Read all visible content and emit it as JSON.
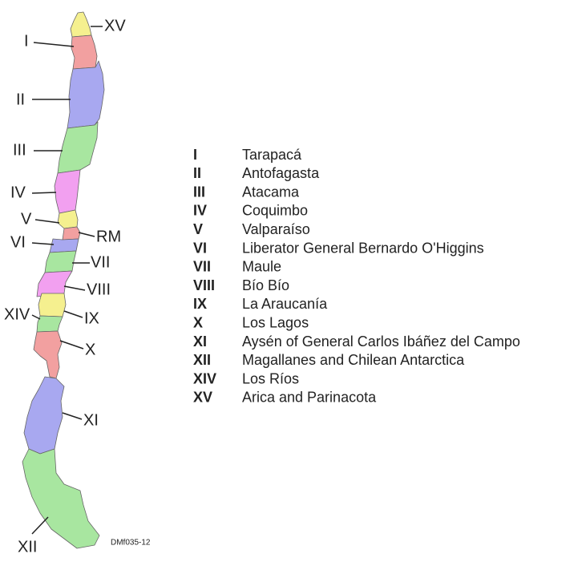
{
  "map": {
    "labels": [
      "XV",
      "I",
      "II",
      "III",
      "IV",
      "V",
      "RM",
      "VI",
      "VII",
      "VIII",
      "XIV",
      "IX",
      "X",
      "XI",
      "XII"
    ]
  },
  "legend": {
    "rows": [
      {
        "numeral": "I",
        "name": "Tarapacá"
      },
      {
        "numeral": "II",
        "name": "Antofagasta"
      },
      {
        "numeral": "III",
        "name": "Atacama"
      },
      {
        "numeral": "IV",
        "name": "Coquimbo"
      },
      {
        "numeral": "V",
        "name": "Valparaíso"
      },
      {
        "numeral": "VI",
        "name": "Liberator General Bernardo O'Higgins"
      },
      {
        "numeral": "VII",
        "name": "Maule"
      },
      {
        "numeral": "VIII",
        "name": "Bío Bío"
      },
      {
        "numeral": "IX",
        "name": "La Araucanía"
      },
      {
        "numeral": "X",
        "name": "Los Lagos"
      },
      {
        "numeral": "XI",
        "name": "Aysén of General Carlos Ibáñez del Campo"
      },
      {
        "numeral": "XII",
        "name": "Magallanes and Chilean Antarctica"
      },
      {
        "numeral": "XIV",
        "name": "Los Ríos"
      },
      {
        "numeral": "XV",
        "name": "Arica and Parinacota"
      }
    ]
  },
  "credit": "DMf035-12"
}
